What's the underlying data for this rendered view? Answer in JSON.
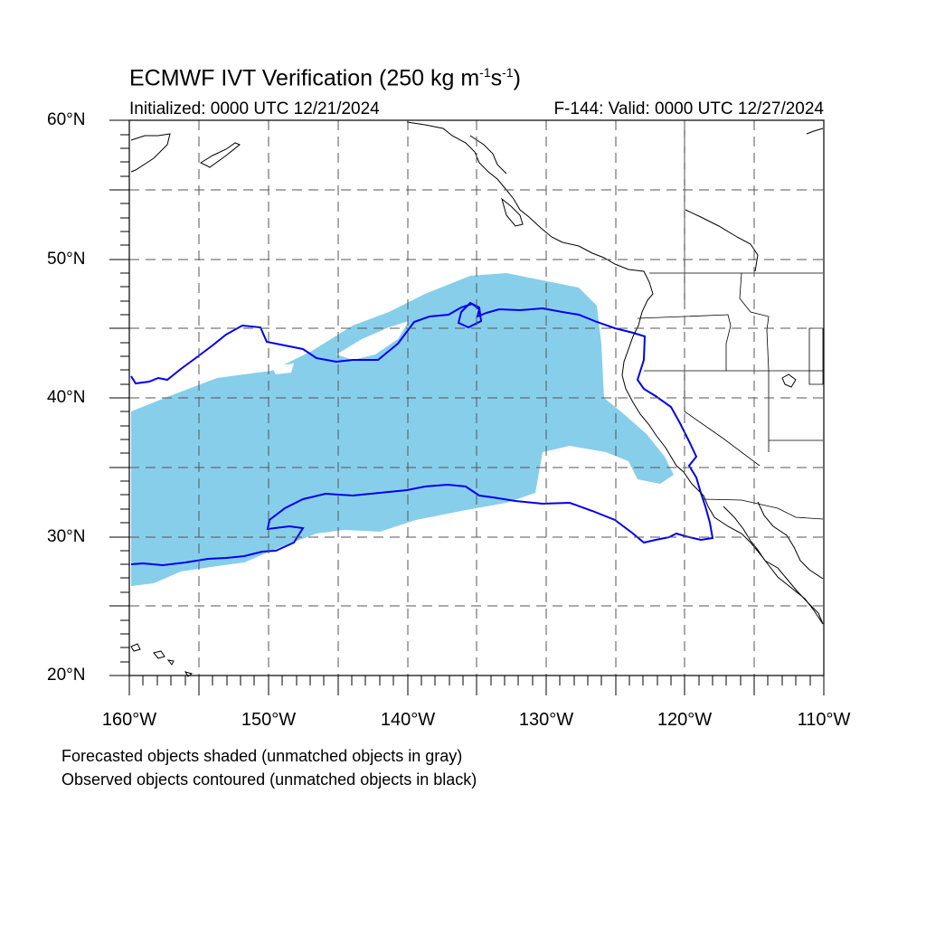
{
  "title": {
    "prefix": "ECMWF IVT Verification (250 kg m",
    "sup1": "-1",
    "mid": "s",
    "sup2": "-1",
    "suffix": ")"
  },
  "subtitle": {
    "initialized": "Initialized: 0000 UTC 12/21/2024",
    "valid": "F-144: Valid: 0000 UTC 12/27/2024"
  },
  "map": {
    "lon_range": [
      -160,
      -110
    ],
    "lat_range": [
      20,
      60
    ],
    "grid_lines": "dashed gray every 5 degrees",
    "lat_labels": [
      "60°N",
      "50°N",
      "40°N",
      "30°N",
      "20°N"
    ],
    "lon_labels": [
      "160°W",
      "150°W",
      "140°W",
      "130°W",
      "120°W",
      "110°W"
    ],
    "colors": {
      "forecast_fill": "#87ceeb",
      "observed_contour": "#0000ee",
      "coastline": "#000000",
      "grid": "#555555"
    }
  },
  "legend": {
    "line1": "Forecasted objects shaded (unmatched objects in gray)",
    "line2": "Observed objects contoured (unmatched objects in black)"
  }
}
